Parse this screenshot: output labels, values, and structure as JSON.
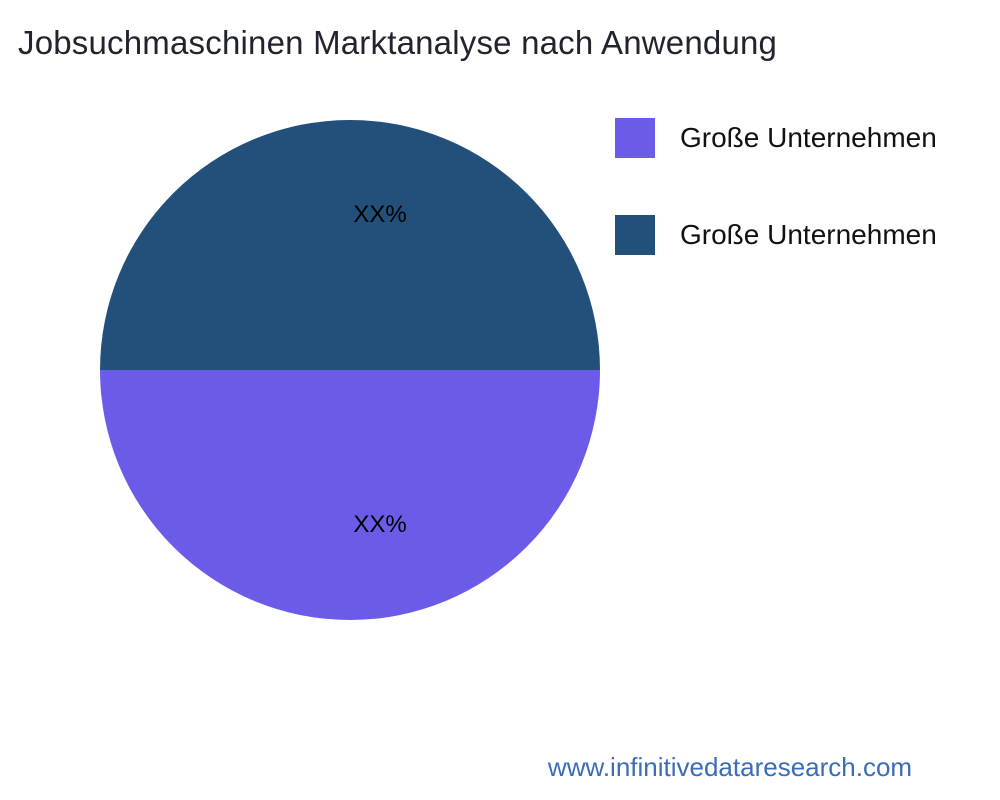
{
  "chart_data": {
    "type": "pie",
    "title": "Jobsuchmaschinen Marktanalyse nach Anwendung",
    "start_angle_deg": 90,
    "legend_position": "right",
    "slices": [
      {
        "label": "Große Unternehmen",
        "value": 50,
        "data_label": "XX%",
        "color": "#6b5be8"
      },
      {
        "label": "Große Unternehmen",
        "value": 50,
        "data_label": "XX%",
        "color": "#234f7b"
      }
    ]
  },
  "footer": {
    "url": "www.infinitivedataresearch.com"
  }
}
